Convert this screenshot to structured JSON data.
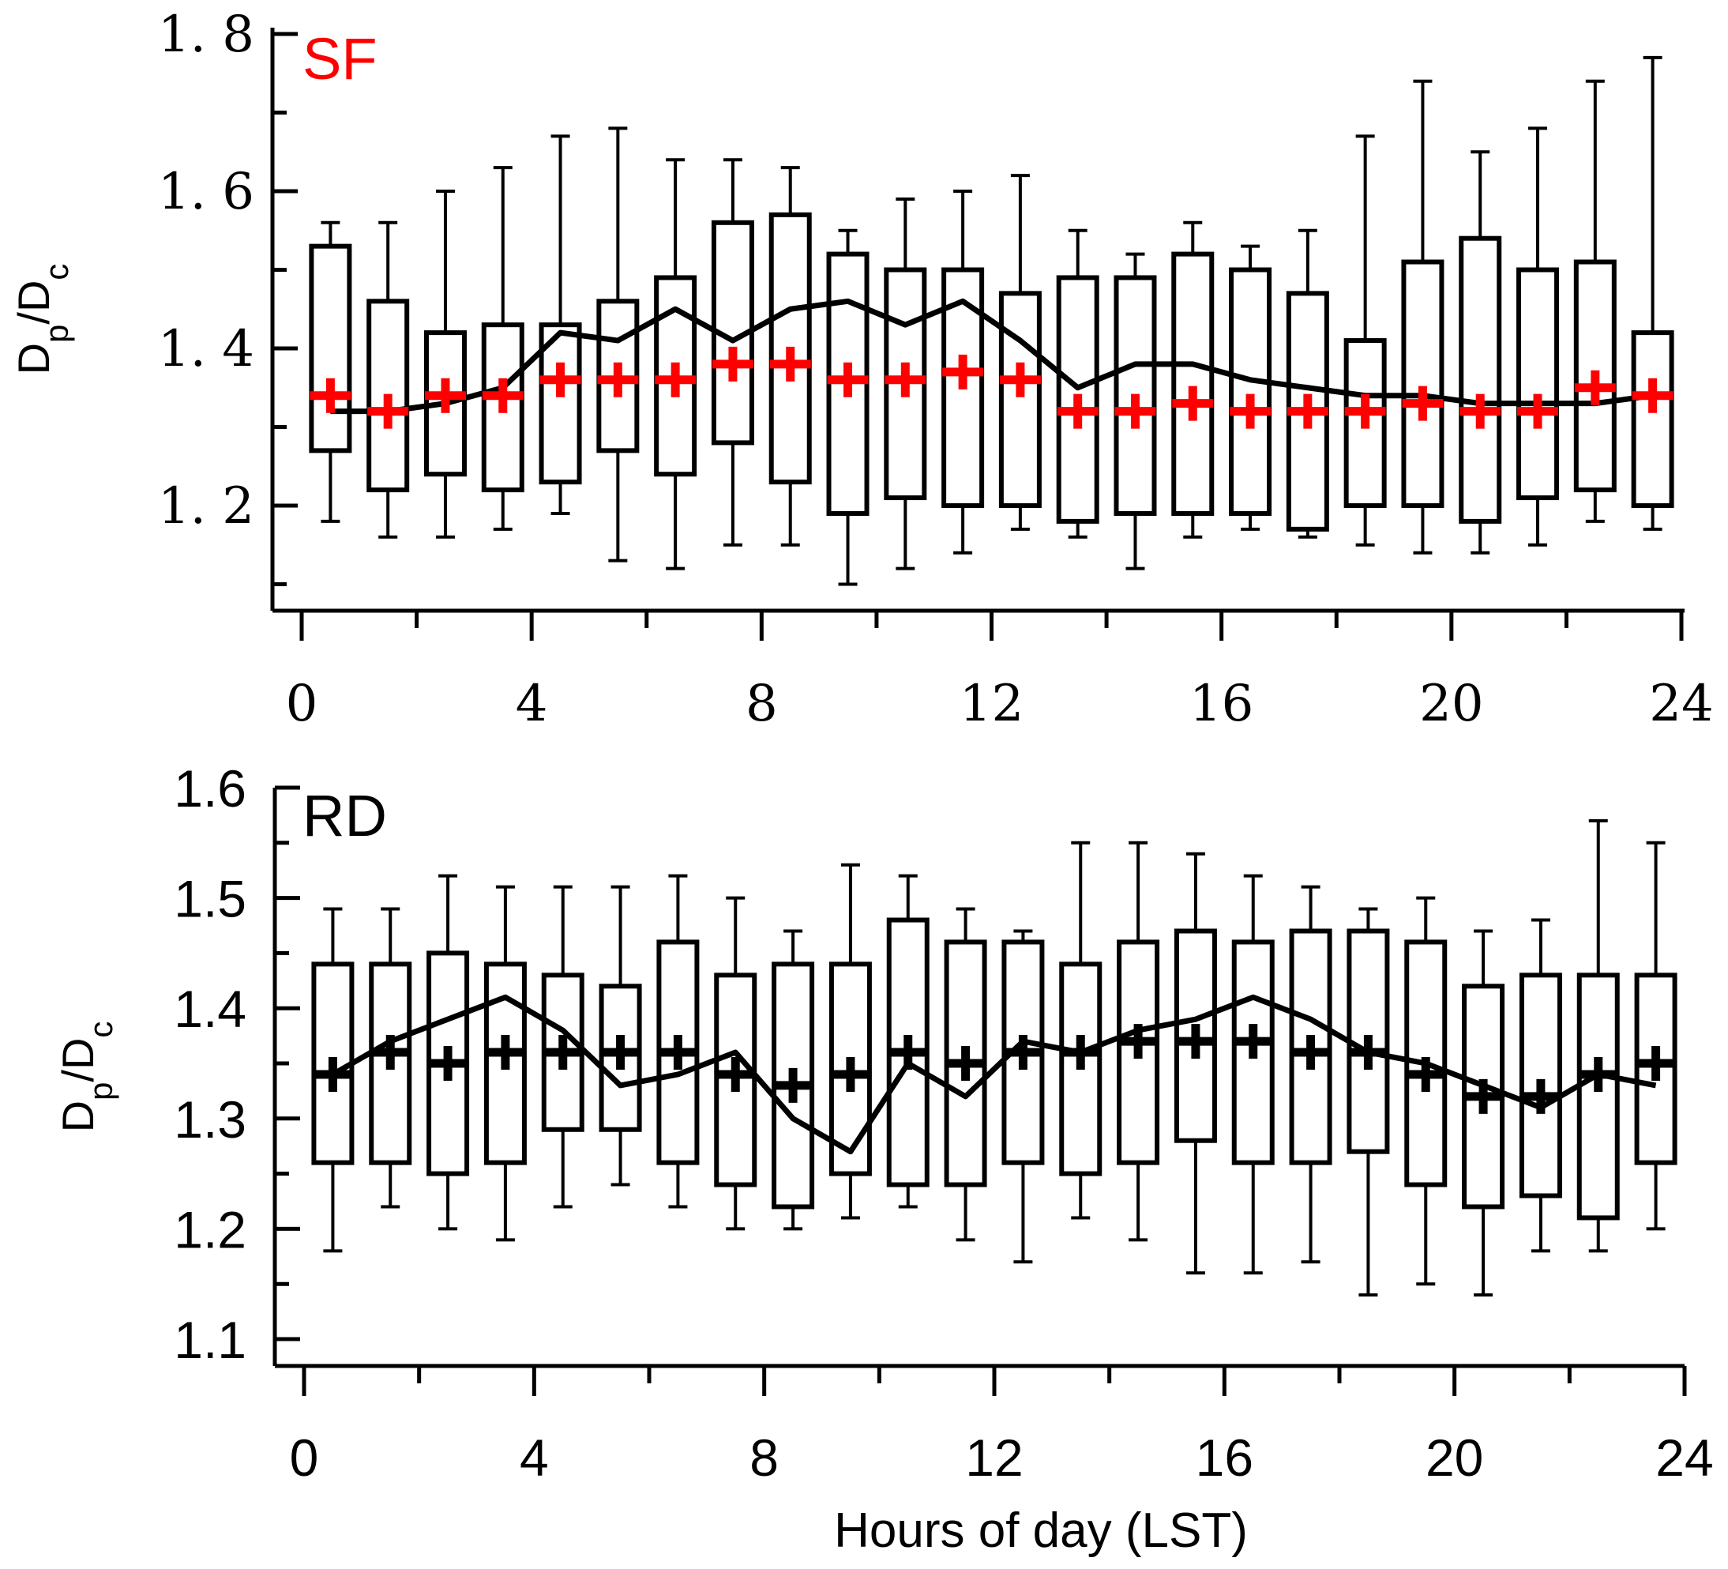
{
  "chart_data": [
    {
      "type": "box",
      "panel_label": "SF",
      "panel_label_color": "#ff0000",
      "xlabel": "",
      "ylabel": "Dp/Dc",
      "xlim": [
        0,
        24
      ],
      "ylim": [
        1.07,
        1.8
      ],
      "xticks": [
        0,
        4,
        8,
        12,
        16,
        20,
        24
      ],
      "xtick_labels": [
        "0",
        "4",
        "8",
        "12",
        "16",
        "20",
        "24"
      ],
      "yticks": [
        1.2,
        1.4,
        1.6,
        1.8
      ],
      "ytick_labels": [
        "1. 2",
        "1. 4",
        "1. 6",
        "1. 8"
      ],
      "marker_color": "#ff0000",
      "line_color": "#000000",
      "hours": [
        0.5,
        1.5,
        2.5,
        3.5,
        4.5,
        5.5,
        6.5,
        7.5,
        8.5,
        9.5,
        10.5,
        11.5,
        12.5,
        13.5,
        14.5,
        15.5,
        16.5,
        17.5,
        18.5,
        19.5,
        20.5,
        21.5,
        22.5,
        23.5
      ],
      "whisker_low": [
        1.18,
        1.16,
        1.16,
        1.17,
        1.19,
        1.13,
        1.12,
        1.15,
        1.15,
        1.1,
        1.12,
        1.14,
        1.17,
        1.16,
        1.12,
        1.16,
        1.17,
        1.16,
        1.15,
        1.14,
        1.14,
        1.15,
        1.18,
        1.17
      ],
      "q1": [
        1.27,
        1.22,
        1.24,
        1.22,
        1.23,
        1.27,
        1.24,
        1.28,
        1.23,
        1.19,
        1.21,
        1.2,
        1.2,
        1.18,
        1.19,
        1.19,
        1.19,
        1.17,
        1.2,
        1.2,
        1.18,
        1.21,
        1.22,
        1.2
      ],
      "marker": [
        1.34,
        1.32,
        1.34,
        1.34,
        1.36,
        1.36,
        1.36,
        1.38,
        1.38,
        1.36,
        1.36,
        1.37,
        1.36,
        1.32,
        1.32,
        1.33,
        1.32,
        1.32,
        1.32,
        1.33,
        1.32,
        1.32,
        1.35,
        1.34
      ],
      "q3": [
        1.53,
        1.46,
        1.42,
        1.43,
        1.43,
        1.46,
        1.49,
        1.56,
        1.57,
        1.52,
        1.5,
        1.5,
        1.47,
        1.49,
        1.49,
        1.52,
        1.5,
        1.47,
        1.41,
        1.51,
        1.54,
        1.5,
        1.51,
        1.42
      ],
      "whisker_high": [
        1.56,
        1.56,
        1.6,
        1.63,
        1.67,
        1.68,
        1.64,
        1.64,
        1.63,
        1.55,
        1.59,
        1.6,
        1.62,
        1.55,
        1.52,
        1.56,
        1.53,
        1.55,
        1.67,
        1.74,
        1.65,
        1.68,
        1.74,
        1.77
      ],
      "mean_line": [
        1.32,
        1.32,
        1.33,
        1.35,
        1.42,
        1.41,
        1.45,
        1.41,
        1.45,
        1.46,
        1.43,
        1.46,
        1.41,
        1.35,
        1.38,
        1.38,
        1.36,
        1.35,
        1.34,
        1.34,
        1.33,
        1.33,
        1.33,
        1.34
      ]
    },
    {
      "type": "box",
      "panel_label": "RD",
      "panel_label_color": "#000000",
      "xlabel": "Hours of day (LST)",
      "ylabel": "Dp/Dc",
      "xlim": [
        0,
        24
      ],
      "ylim": [
        1.08,
        1.6
      ],
      "xticks": [
        0,
        4,
        8,
        12,
        16,
        20,
        24
      ],
      "xtick_labels": [
        "0",
        "4",
        "8",
        "12",
        "16",
        "20",
        "24"
      ],
      "yticks": [
        1.1,
        1.2,
        1.3,
        1.4,
        1.5,
        1.6
      ],
      "ytick_labels": [
        "1.1",
        "1.2",
        "1.3",
        "1.4",
        "1.5",
        "1.6"
      ],
      "marker_color": "#000000",
      "line_color": "#000000",
      "hours": [
        0.5,
        1.5,
        2.5,
        3.5,
        4.5,
        5.5,
        6.5,
        7.5,
        8.5,
        9.5,
        10.5,
        11.5,
        12.5,
        13.5,
        14.5,
        15.5,
        16.5,
        17.5,
        18.5,
        19.5,
        20.5,
        21.5,
        22.5,
        23.5
      ],
      "whisker_low": [
        1.18,
        1.22,
        1.2,
        1.19,
        1.22,
        1.24,
        1.22,
        1.2,
        1.2,
        1.21,
        1.22,
        1.19,
        1.17,
        1.21,
        1.19,
        1.16,
        1.16,
        1.17,
        1.14,
        1.15,
        1.14,
        1.18,
        1.18,
        1.2
      ],
      "q1": [
        1.26,
        1.26,
        1.25,
        1.26,
        1.29,
        1.29,
        1.26,
        1.24,
        1.22,
        1.25,
        1.24,
        1.24,
        1.26,
        1.25,
        1.26,
        1.28,
        1.26,
        1.26,
        1.27,
        1.24,
        1.22,
        1.23,
        1.21,
        1.26
      ],
      "marker": [
        1.34,
        1.36,
        1.35,
        1.36,
        1.36,
        1.36,
        1.36,
        1.34,
        1.33,
        1.34,
        1.36,
        1.35,
        1.36,
        1.36,
        1.37,
        1.37,
        1.37,
        1.36,
        1.36,
        1.34,
        1.32,
        1.32,
        1.34,
        1.35
      ],
      "q3": [
        1.44,
        1.44,
        1.45,
        1.44,
        1.43,
        1.42,
        1.46,
        1.43,
        1.44,
        1.44,
        1.48,
        1.46,
        1.46,
        1.44,
        1.46,
        1.47,
        1.46,
        1.47,
        1.47,
        1.46,
        1.42,
        1.43,
        1.43,
        1.43
      ],
      "whisker_high": [
        1.49,
        1.49,
        1.52,
        1.51,
        1.51,
        1.51,
        1.52,
        1.5,
        1.47,
        1.53,
        1.52,
        1.49,
        1.47,
        1.55,
        1.55,
        1.54,
        1.52,
        1.51,
        1.49,
        1.5,
        1.47,
        1.48,
        1.57,
        1.55
      ],
      "mean_line": [
        1.34,
        1.37,
        1.39,
        1.41,
        1.38,
        1.33,
        1.34,
        1.36,
        1.3,
        1.27,
        1.35,
        1.32,
        1.37,
        1.36,
        1.38,
        1.39,
        1.41,
        1.39,
        1.36,
        1.35,
        1.33,
        1.31,
        1.34,
        1.33
      ]
    }
  ]
}
